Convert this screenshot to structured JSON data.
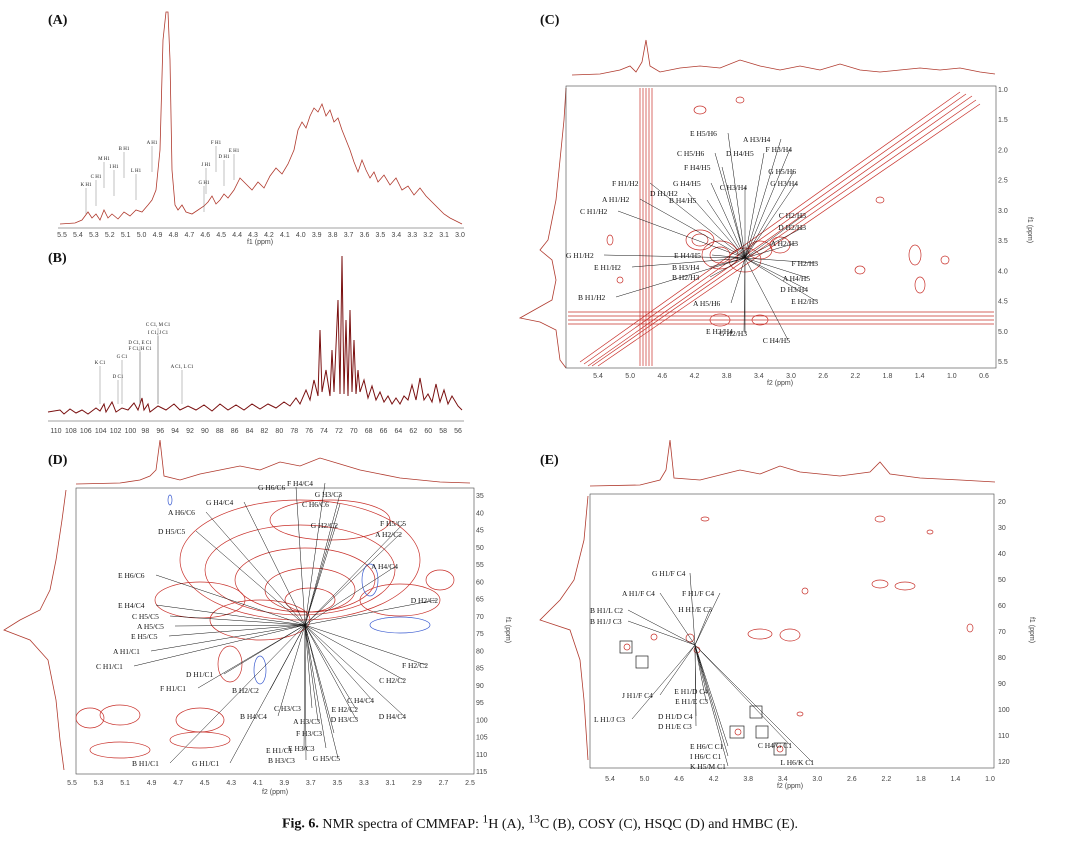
{
  "caption": {
    "label": "Fig. 6.",
    "text_parts": [
      {
        "t": "NMR spectra of CMMFAP: "
      },
      {
        "t": "1",
        "sup": true
      },
      {
        "t": "H (A), "
      },
      {
        "t": "13",
        "sup": true
      },
      {
        "t": "C (B), COSY (C), HSQC (D) and HMBC (E)."
      }
    ]
  },
  "panels": {
    "A": {
      "label": "(A)",
      "axis_title": "f1 (ppm)",
      "ticks": [
        "5.5",
        "5.4",
        "5.3",
        "5.2",
        "5.1",
        "5.0",
        "4.9",
        "4.8",
        "4.7",
        "4.6",
        "4.5",
        "4.4",
        "4.3",
        "4.2",
        "4.1",
        "4.0",
        "3.9",
        "3.8",
        "3.7",
        "3.6",
        "3.5",
        "3.4",
        "3.3",
        "3.2",
        "3.1",
        "3.0"
      ],
      "peaks": [
        "K H1",
        "C H1",
        "M H1",
        "I H1",
        "B H1",
        "L H1",
        "A H1",
        "F H1",
        "J H1",
        "D H1",
        "E H1",
        "G H1"
      ]
    },
    "B": {
      "label": "(B)",
      "ticks": [
        "110",
        "108",
        "106",
        "104",
        "102",
        "100",
        "98",
        "96",
        "94",
        "92",
        "90",
        "88",
        "86",
        "84",
        "82",
        "80",
        "78",
        "76",
        "74",
        "72",
        "70",
        "68",
        "66",
        "64",
        "62",
        "60",
        "58",
        "56"
      ],
      "peaks": [
        "K C1",
        "D C1",
        "G C1",
        "D C1, E C1",
        "F C1, H C1",
        "C C1, M C1",
        "I C1, J C1",
        "A C1, L C1"
      ]
    },
    "C": {
      "label": "(C)",
      "x_title": "f2 (ppm)",
      "y_title": "f1 (ppm)",
      "x_ticks": [
        "5.4",
        "5.0",
        "4.6",
        "4.2",
        "3.8",
        "3.4",
        "3.0",
        "2.6",
        "2.2",
        "1.8",
        "1.4",
        "1.0",
        "0.6"
      ],
      "y_ticks": [
        "1.0",
        "1.5",
        "2.0",
        "2.5",
        "3.0",
        "3.5",
        "4.0",
        "4.5",
        "5.0",
        "5.5"
      ],
      "annotations": [
        "E H5/H6",
        "A H3/H4",
        "C H5/H6",
        "D H4/H5",
        "F H4/H5",
        "F H3/H4",
        "G H5/H6",
        "G H3/H4",
        "F H1/H2",
        "C H3/H4",
        "D H1/H2",
        "G H4/H5",
        "A H1/H2",
        "B H4/H5",
        "C H1/H2",
        "C H2/H3",
        "D H2/H3",
        "A H2/H3",
        "G H1/H2",
        "E H4/H5",
        "F H2/H3",
        "E H1/H2",
        "B H3/H4",
        "B H2/H3",
        "A H4/H5",
        "D H3/H4",
        "B H1/H2",
        "E H2/H3",
        "A H5/H6",
        "E H3/H4",
        "G H2/H3",
        "C H4/H5"
      ]
    },
    "D": {
      "label": "(D)",
      "x_title": "f2 (ppm)",
      "y_title": "f1 (ppm)",
      "x_ticks": [
        "5.5",
        "5.3",
        "5.1",
        "4.9",
        "4.7",
        "4.5",
        "4.3",
        "4.1",
        "3.9",
        "3.7",
        "3.5",
        "3.3",
        "3.1",
        "2.9",
        "2.7",
        "2.5"
      ],
      "y_ticks": [
        "35",
        "40",
        "45",
        "50",
        "55",
        "60",
        "65",
        "70",
        "75",
        "80",
        "85",
        "90",
        "95",
        "100",
        "105",
        "110",
        "115"
      ],
      "annotations": [
        "G H6/C6",
        "F H4/C4",
        "G H3/C3",
        "A H6/C6",
        "G H4/C4",
        "C H6/C6",
        "F H5/C5",
        "D H5/C5",
        "G H2/C2",
        "A H2/C2",
        "A H4/C4",
        "E H6/C6",
        "D H2/C2",
        "E H4/C4",
        "C H5/C5",
        "A H5/C5",
        "E H5/C5",
        "A H1/C1",
        "F H2/C2",
        "C H2/C2",
        "C H1/C1",
        "D H1/C1",
        "B H2/C2",
        "C H4/C4",
        "D H4/C4",
        "F H1/C1",
        "B H4/C4",
        "C H3/C3",
        "A H3/C3",
        "E H2/C2",
        "D H3/C3",
        "E H1/C1",
        "B H3/C3",
        "F H3/C3",
        "E H3/C3",
        "G H5/C5",
        "B H1/C1",
        "G H1/C1"
      ]
    },
    "E": {
      "label": "(E)",
      "x_title": "f2 (ppm)",
      "y_title": "f1 (ppm)",
      "x_ticks": [
        "5.4",
        "5.0",
        "4.6",
        "4.2",
        "3.8",
        "3.4",
        "3.0",
        "2.6",
        "2.2",
        "1.8",
        "1.4",
        "1.0"
      ],
      "y_ticks": [
        "20",
        "30",
        "40",
        "50",
        "60",
        "70",
        "80",
        "90",
        "100",
        "110",
        "120"
      ],
      "annotations": [
        "G H1/F C4",
        "A H1/F C4",
        "F H1/F C4",
        "H H1/E C3",
        "B H1/L C2",
        "B H1/J C3",
        "J H1/F C4",
        "E H1/D C4",
        "E H1/E C3",
        "L H1/J C3",
        "D H1/D C4",
        "D H1/E C3",
        "E H6/C C1",
        "I H6/C C1",
        "K H5/M C1",
        "C H4/G C1",
        "L H6/K C1"
      ]
    }
  },
  "colors": {
    "spectrum": "#b03a2e",
    "dark_spectrum": "#7a1010",
    "contour": "#c8302a",
    "blue_contour": "#3a5bd0",
    "axis": "#444444"
  }
}
